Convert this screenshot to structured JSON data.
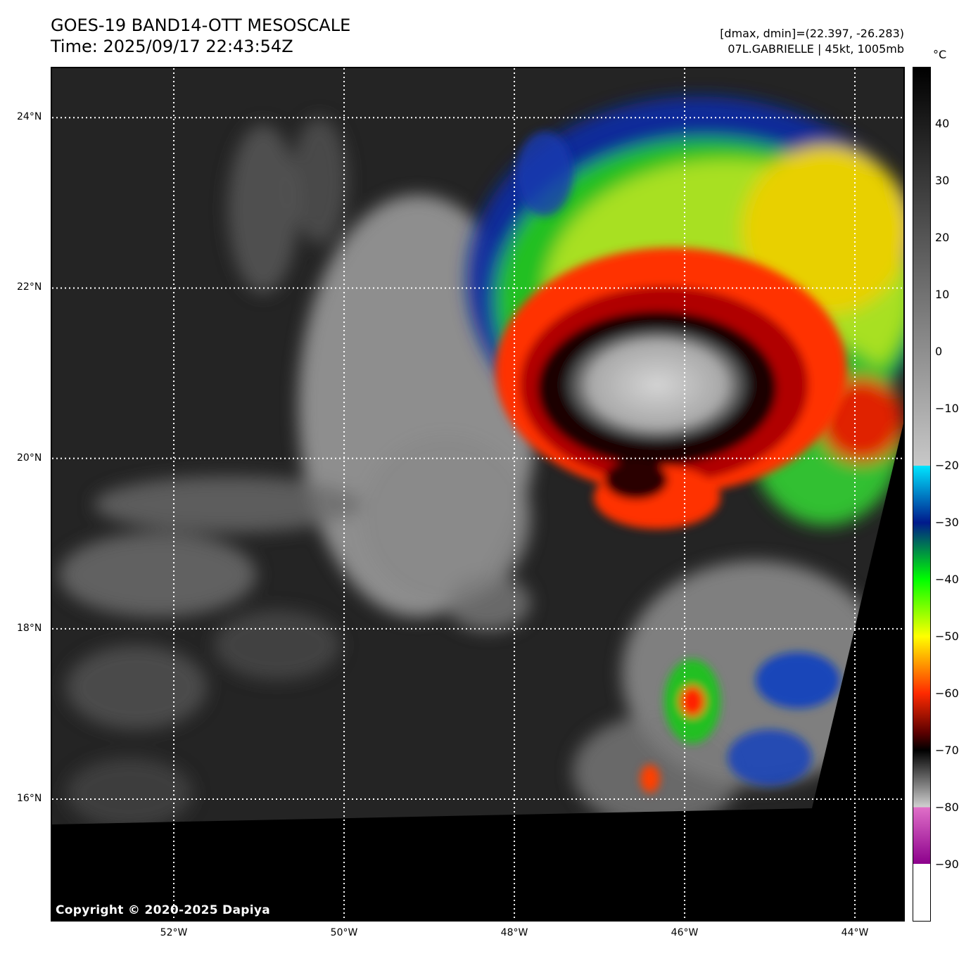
{
  "header": {
    "title_line1": "GOES-19 BAND14-OTT MESOSCALE",
    "title_line2": "Time: 2025/09/17 22:43:54Z",
    "range_line": "[dmax, dmin]=(22.397, -26.283)",
    "storm_line": "07L.GABRIELLE | 45kt, 1005mb"
  },
  "map": {
    "copyright": "Copyright © 2020-2025 Dapiya",
    "lat_labels": [
      "24°N",
      "22°N",
      "20°N",
      "18°N",
      "16°N"
    ],
    "lon_labels": [
      "52°W",
      "50°W",
      "48°W",
      "46°W",
      "44°W"
    ],
    "lat_values": [
      24,
      22,
      20,
      18,
      16
    ],
    "lon_values": [
      -52,
      -50,
      -48,
      -46,
      -44
    ],
    "extent": {
      "lon_min": -53.43,
      "lon_max": -43.43,
      "lat_min": 14.58,
      "lat_max": 24.58
    },
    "gridlines": true
  },
  "colorbar": {
    "unit": "°C",
    "tick_labels": [
      "40",
      "30",
      "20",
      "10",
      "0",
      "−10",
      "−20",
      "−30",
      "−40",
      "−50",
      "−60",
      "−70",
      "−80",
      "−90"
    ],
    "tick_values": [
      40,
      30,
      20,
      10,
      0,
      -10,
      -20,
      -30,
      -40,
      -50,
      -60,
      -70,
      -80,
      -90
    ],
    "range": [
      -100,
      50
    ],
    "stops": [
      {
        "t": 50,
        "color": "#000000"
      },
      {
        "t": -20,
        "color": "#c8c8c8"
      },
      {
        "t": -20,
        "color": "#00e5ff"
      },
      {
        "t": -30,
        "color": "#001a8c"
      },
      {
        "t": -40,
        "color": "#00ff00"
      },
      {
        "t": -50,
        "color": "#ffff00"
      },
      {
        "t": -60,
        "color": "#ff2a00"
      },
      {
        "t": -67,
        "color": "#5a0000"
      },
      {
        "t": -70,
        "color": "#000000"
      },
      {
        "t": -80,
        "color": "#d0d0d0"
      },
      {
        "t": -80,
        "color": "#e070c8"
      },
      {
        "t": -90,
        "color": "#8c008c"
      },
      {
        "t": -90,
        "color": "#ffffff"
      },
      {
        "t": -100,
        "color": "#ffffff"
      }
    ]
  }
}
